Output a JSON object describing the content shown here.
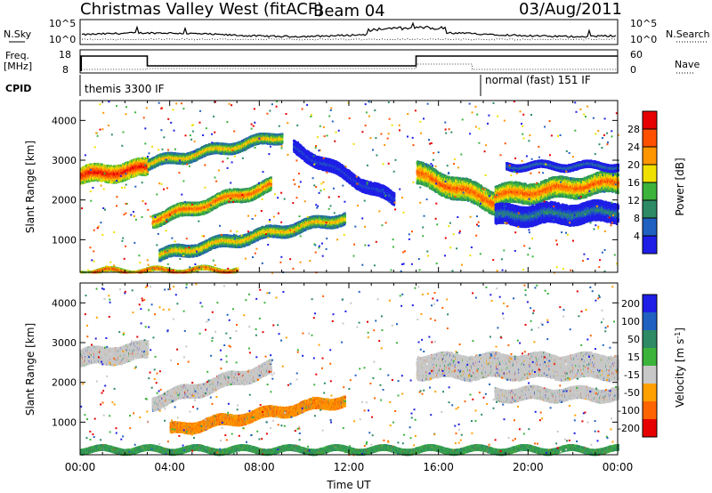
{
  "header": {
    "station": "Christmas Valley West (fitACF)",
    "beam": "Beam 04",
    "date": "03/Aug/2011"
  },
  "labels": {
    "nsky": "N.Sky",
    "nsearch": "N.Search",
    "freq_line1": "Freq.",
    "freq_line2": "[MHz]",
    "nave": "Nave",
    "cpid": "CPID",
    "cpid_seg1": "themis 3300 IF",
    "cpid_seg2": "normal (fast) 151 IF"
  },
  "noise_axis": {
    "left_ticks": [
      "10^5",
      "10^0"
    ],
    "right_ticks": [
      "10^5",
      "10^0"
    ]
  },
  "freq_axis": {
    "left_ticks": [
      "18",
      "8"
    ],
    "right_ticks": [
      "60",
      "0"
    ]
  },
  "colors": {
    "power": [
      "#1e1ee6",
      "#2060c0",
      "#2d8a64",
      "#3cb43c",
      "#f0e000",
      "#ff9600",
      "#ff5000",
      "#e60000"
    ],
    "velocity": [
      "#1e1ee6",
      "#2060c0",
      "#2d8a64",
      "#3cb43c",
      "#c8c8c8",
      "#ffa000",
      "#ff6400",
      "#e60000"
    ]
  },
  "chart_data": [
    {
      "type": "heatmap",
      "title": "",
      "xlabel": "",
      "ylabel": "Slant Range [km]",
      "xlim": [
        "00:00",
        "24:00"
      ],
      "ylim": [
        180,
        4500
      ],
      "x_tick_labels": [
        "00:00",
        "04:00",
        "08:00",
        "12:00",
        "16:00",
        "20:00",
        "00:00"
      ],
      "y_tick_labels": [
        "1000",
        "2000",
        "3000",
        "4000"
      ],
      "colorbar": {
        "label": "Power [dB]",
        "range": [
          0,
          32
        ],
        "tick_labels": [
          "4",
          "8",
          "12",
          "16",
          "20",
          "24",
          "28"
        ]
      },
      "features": [
        {
          "start_h": 0.0,
          "end_h": 3.0,
          "range_start_km": 2600,
          "range_end_km": 2800,
          "width_km": 420,
          "level": 28
        },
        {
          "start_h": 3.2,
          "end_h": 8.5,
          "range_start_km": 1500,
          "range_end_km": 2350,
          "width_km": 320,
          "level": 26
        },
        {
          "start_h": 3.5,
          "end_h": 11.8,
          "range_start_km": 600,
          "range_end_km": 1550,
          "width_km": 280,
          "level": 22
        },
        {
          "start_h": 3.0,
          "end_h": 9.0,
          "range_start_km": 2900,
          "range_end_km": 3600,
          "width_km": 250,
          "level": 20
        },
        {
          "start_h": 0.0,
          "end_h": 7.0,
          "range_start_km": 200,
          "range_end_km": 250,
          "width_km": 80,
          "level": 30
        },
        {
          "start_h": 9.5,
          "end_h": 14.0,
          "range_start_km": 3300,
          "range_end_km": 2000,
          "width_km": 300,
          "level": 6
        },
        {
          "start_h": 15.0,
          "end_h": 18.5,
          "range_start_km": 2650,
          "range_end_km": 1950,
          "width_km": 550,
          "level": 26
        },
        {
          "start_h": 18.5,
          "end_h": 24.0,
          "range_start_km": 2100,
          "range_end_km": 2450,
          "width_km": 500,
          "level": 24
        },
        {
          "start_h": 18.5,
          "end_h": 24.0,
          "range_start_km": 1600,
          "range_end_km": 1700,
          "width_km": 500,
          "level": 10
        },
        {
          "start_h": 19.0,
          "end_h": 24.0,
          "range_start_km": 2850,
          "range_end_km": 2850,
          "width_km": 160,
          "level": 8
        }
      ]
    },
    {
      "type": "heatmap",
      "title": "",
      "xlabel": "Time UT",
      "ylabel": "Slant Range [km]",
      "xlim": [
        "00:00",
        "24:00"
      ],
      "ylim": [
        180,
        4500
      ],
      "x_tick_labels": [
        "00:00",
        "04:00",
        "08:00",
        "12:00",
        "16:00",
        "20:00",
        "00:00"
      ],
      "y_tick_labels": [
        "1000",
        "2000",
        "3000",
        "4000"
      ],
      "colorbar": {
        "label": "Velocity [m s^-1]",
        "range": [
          -250,
          250
        ],
        "tick_labels": [
          "200",
          "100",
          "50",
          "15",
          "-15",
          "-50",
          "-100",
          "-200"
        ]
      },
      "features": [
        {
          "start_h": 0.0,
          "end_h": 3.0,
          "range_start_km": 2600,
          "range_end_km": 2800,
          "width_km": 420,
          "level": 0
        },
        {
          "start_h": 3.2,
          "end_h": 8.5,
          "range_start_km": 1500,
          "range_end_km": 2350,
          "width_km": 320,
          "level": 0
        },
        {
          "start_h": 4.0,
          "end_h": 11.8,
          "range_start_km": 800,
          "range_end_km": 1550,
          "width_km": 250,
          "level": -60
        },
        {
          "start_h": 15.0,
          "end_h": 24.0,
          "range_start_km": 2400,
          "range_end_km": 2400,
          "width_km": 600,
          "level": 0
        },
        {
          "start_h": 18.5,
          "end_h": 24.0,
          "range_start_km": 1700,
          "range_end_km": 1700,
          "width_km": 300,
          "level": 0
        },
        {
          "start_h": 0.0,
          "end_h": 24.0,
          "range_start_km": 300,
          "range_end_km": 300,
          "width_km": 120,
          "level": 40
        }
      ]
    }
  ]
}
